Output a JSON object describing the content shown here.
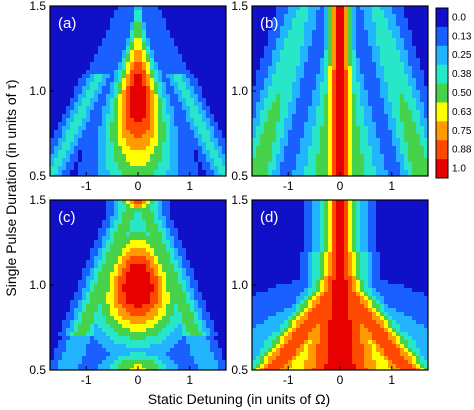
{
  "chart_data": {
    "type": "heatmap",
    "x_axis": {
      "label": "Static Detuning (in units of Ω)",
      "range": [
        -1.7,
        1.7
      ],
      "ticks": [
        -1,
        0,
        1
      ],
      "tick_labels": [
        "-1",
        "0",
        "1"
      ]
    },
    "y_axis": {
      "label": "Single Pulse Duration (in units of τ)",
      "range": [
        0.5,
        1.5
      ],
      "ticks": [
        0.5,
        1.0,
        1.5
      ],
      "tick_labels": [
        "0.5",
        "1.0",
        "1.5"
      ]
    },
    "colorbar": {
      "levels": [
        0.0,
        0.13,
        0.25,
        0.38,
        0.5,
        0.63,
        0.75,
        0.88,
        1.0
      ],
      "labels": [
        "0.0",
        "0.13",
        "0.25",
        "0.38",
        "0.50",
        "0.63",
        "0.75",
        "0.88",
        "1.0"
      ],
      "colors": [
        "#1010c8",
        "#1a60ff",
        "#22b4ff",
        "#28e6c8",
        "#46d24a",
        "#ffff00",
        "#ff9a00",
        "#ff4800",
        "#e60000"
      ]
    },
    "panels": [
      {
        "label": "(a)",
        "description": "single peak centered at detuning 0, duration ~0.9; ridges along diagonals"
      },
      {
        "label": "(b)",
        "description": "narrow vertical high-value band at detuning 0 spanning all durations"
      },
      {
        "label": "(c)",
        "description": "broad peak near duration ~1.0 at detuning 0, secondary maximum near top"
      },
      {
        "label": "(d)",
        "description": "wide high-value region widening toward lower durations, Y-shaped"
      }
    ],
    "grid": false
  }
}
